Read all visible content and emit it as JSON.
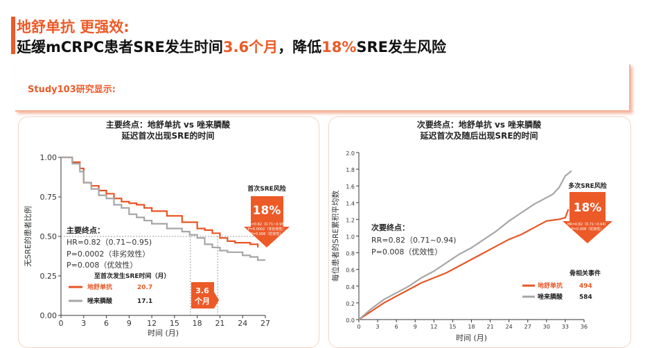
{
  "header": {
    "line1": "地舒单抗 更强效:",
    "line2_parts": [
      "延缓mCRPC患者SRE发生时间",
      "3.6个月",
      "，降低",
      "18%",
      "SRE发生风险"
    ]
  },
  "study_label": "Study103研究显示:",
  "left_panel": {
    "title1": "主要终点：地舒单抗 vs 唑来膦酸",
    "title2": "延迟首次出现SRE的时间"
  },
  "right_panel": {
    "title1": "次要终点：地舒单抗 vs 唑来膦酸",
    "title2": "延迟首次及随后出现SRE的时间"
  },
  "colors": {
    "denosumab": "#e85524",
    "zoledronic": "#a6a6a6",
    "accent": "#ec5a28"
  },
  "chart_data": [
    {
      "type": "line",
      "title": "主要终点：地舒单抗 vs 唑来膦酸 延迟首次出现SRE的时间",
      "xlabel": "时间 (月)",
      "ylabel": "无SRE的患者比例",
      "xlim": [
        0,
        27
      ],
      "ylim": [
        0,
        1
      ],
      "x_ticks": [
        "0",
        "3",
        "6",
        "9",
        "12",
        "15",
        "18",
        "21",
        "24",
        "27"
      ],
      "y_ticks": [
        "0.00",
        "0.25",
        "0.50",
        "0.75",
        "1.00"
      ],
      "series": [
        {
          "name": "地舒单抗",
          "color": "#e85524",
          "points": [
            [
              0,
              1.0
            ],
            [
              1.5,
              0.97
            ],
            [
              2.5,
              0.93
            ],
            [
              3,
              0.84
            ],
            [
              4,
              0.82
            ],
            [
              5,
              0.79
            ],
            [
              6,
              0.77
            ],
            [
              7,
              0.74
            ],
            [
              8,
              0.72
            ],
            [
              9,
              0.71
            ],
            [
              10,
              0.7
            ],
            [
              11,
              0.68
            ],
            [
              12,
              0.66
            ],
            [
              14,
              0.63
            ],
            [
              16,
              0.59
            ],
            [
              18,
              0.55
            ],
            [
              19,
              0.54
            ],
            [
              20,
              0.52
            ],
            [
              21,
              0.49
            ],
            [
              22,
              0.47
            ],
            [
              23,
              0.46
            ],
            [
              25,
              0.45
            ],
            [
              26,
              0.43
            ]
          ]
        },
        {
          "name": "唑来膦酸",
          "color": "#a6a6a6",
          "points": [
            [
              0,
              1.0
            ],
            [
              1.5,
              0.96
            ],
            [
              2.5,
              0.91
            ],
            [
              3,
              0.84
            ],
            [
              4,
              0.8
            ],
            [
              5,
              0.76
            ],
            [
              6,
              0.74
            ],
            [
              7,
              0.7
            ],
            [
              8,
              0.68
            ],
            [
              9,
              0.64
            ],
            [
              10,
              0.62
            ],
            [
              11,
              0.6
            ],
            [
              12,
              0.58
            ],
            [
              14,
              0.55
            ],
            [
              16,
              0.53
            ],
            [
              17,
              0.51
            ],
            [
              18,
              0.49
            ],
            [
              19,
              0.45
            ],
            [
              20,
              0.43
            ],
            [
              21,
              0.41
            ],
            [
              22,
              0.4
            ],
            [
              24,
              0.38
            ],
            [
              25,
              0.37
            ],
            [
              26,
              0.35
            ],
            [
              27,
              0.35
            ]
          ]
        }
      ],
      "annotations": {
        "endpoint_title": "主要终点：",
        "hr": "HR=0.82（0.71~0.95)",
        "p1": "P=0.0002（非劣效性）",
        "p2": "P=0.008（优效性）",
        "median_title": "至首次发生SRE时间（月）",
        "legend": [
          {
            "name": "地舒单抗",
            "value": "20.7"
          },
          {
            "name": "唑来膦酸",
            "value": "17.1"
          }
        ],
        "delta_line1": "3.6",
        "delta_line2": "个月",
        "risk_title": "首次SRE风险",
        "risk_value": "18%",
        "risk_hr": "HR=0.82（0.71~0.95）",
        "risk_p1": "P=0.0002（非劣效性）",
        "risk_p2": "P=0.008（优效性）"
      }
    },
    {
      "type": "line",
      "title": "次要终点：地舒单抗 vs 唑来膦酸 延迟首次及随后出现SRE的时间",
      "xlabel": "时间 (月)",
      "ylabel": "每位患者的SRE累积平均数",
      "xlim": [
        0,
        36
      ],
      "ylim": [
        0,
        2.0
      ],
      "x_ticks": [
        "0",
        "3",
        "6",
        "9",
        "12",
        "15",
        "18",
        "21",
        "24",
        "27",
        "30",
        "33",
        "36"
      ],
      "y_ticks": [
        "0.0",
        "0.2",
        "0.4",
        "0.6",
        "0.8",
        "1.0",
        "1.2",
        "1.4",
        "1.6",
        "1.8",
        "2.0"
      ],
      "series": [
        {
          "name": "地舒单抗",
          "color": "#e85524",
          "points": [
            [
              0,
              0.0
            ],
            [
              2,
              0.1
            ],
            [
              4,
              0.2
            ],
            [
              6,
              0.28
            ],
            [
              8,
              0.36
            ],
            [
              10,
              0.44
            ],
            [
              12,
              0.5
            ],
            [
              14,
              0.56
            ],
            [
              16,
              0.64
            ],
            [
              18,
              0.72
            ],
            [
              20,
              0.8
            ],
            [
              22,
              0.88
            ],
            [
              24,
              0.96
            ],
            [
              26,
              1.02
            ],
            [
              28,
              1.1
            ],
            [
              30,
              1.18
            ],
            [
              32,
              1.2
            ],
            [
              33,
              1.22
            ],
            [
              33.5,
              1.32
            ]
          ]
        },
        {
          "name": "唑来膦酸",
          "color": "#a6a6a6",
          "points": [
            [
              0,
              0.0
            ],
            [
              2,
              0.13
            ],
            [
              4,
              0.24
            ],
            [
              6,
              0.32
            ],
            [
              8,
              0.4
            ],
            [
              10,
              0.5
            ],
            [
              12,
              0.58
            ],
            [
              14,
              0.68
            ],
            [
              16,
              0.78
            ],
            [
              18,
              0.86
            ],
            [
              20,
              0.96
            ],
            [
              22,
              1.06
            ],
            [
              24,
              1.18
            ],
            [
              26,
              1.28
            ],
            [
              28,
              1.38
            ],
            [
              30,
              1.46
            ],
            [
              31,
              1.5
            ],
            [
              32,
              1.58
            ],
            [
              33,
              1.72
            ],
            [
              34,
              1.78
            ]
          ]
        }
      ],
      "annotations": {
        "endpoint_title": "次要终点：",
        "rr": "RR=0.82（0.71~0.94)",
        "p": "P=0.008（优效性）",
        "events_title": "骨相关事件",
        "legend": [
          {
            "name": "地舒单抗",
            "value": "494"
          },
          {
            "name": "唑来膦酸",
            "value": "584"
          }
        ],
        "risk_title": "多次SRE风险",
        "risk_value": "18%",
        "risk_hr": "HR=0.82（0.71~0.94）",
        "risk_p": "P=0.008（优效性）"
      }
    }
  ]
}
